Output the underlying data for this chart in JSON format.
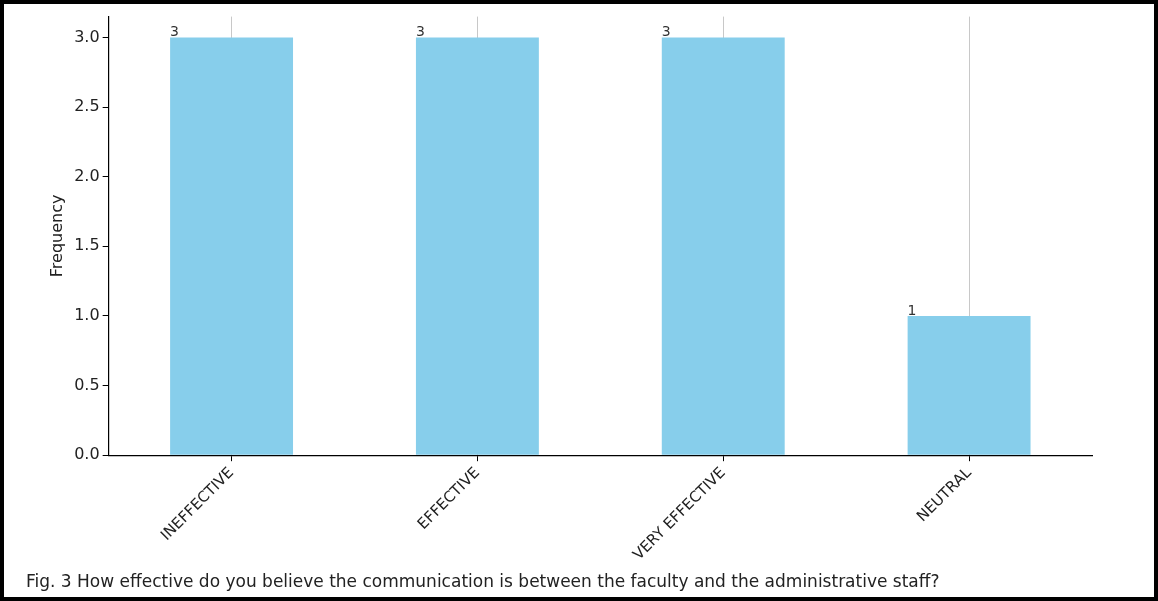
{
  "chart_data": {
    "type": "bar",
    "ylabel": "Frequency",
    "categories": [
      "INEFFECTIVE",
      "EFFECTIVE",
      "VERY EFFECTIVE",
      "NEUTRAL"
    ],
    "values": [
      3,
      3,
      3,
      1
    ],
    "color": "#87ceeb",
    "ylim": [
      0,
      3.15
    ],
    "yticks": [
      {
        "value": 0,
        "label": "0.0"
      },
      {
        "value": 0.5,
        "label": "0.5"
      },
      {
        "value": 1,
        "label": "1.0"
      },
      {
        "value": 1.5,
        "label": "1.5"
      },
      {
        "value": 2,
        "label": "2.0"
      },
      {
        "value": 2.5,
        "label": "2.5"
      },
      {
        "value": 3,
        "label": "3.0"
      }
    ],
    "grid": "x",
    "legend": false,
    "data_labels": true,
    "annotations": [
      "Fig. 3 How effective do you believe the communication is between the faculty and the administrative staff?"
    ]
  }
}
